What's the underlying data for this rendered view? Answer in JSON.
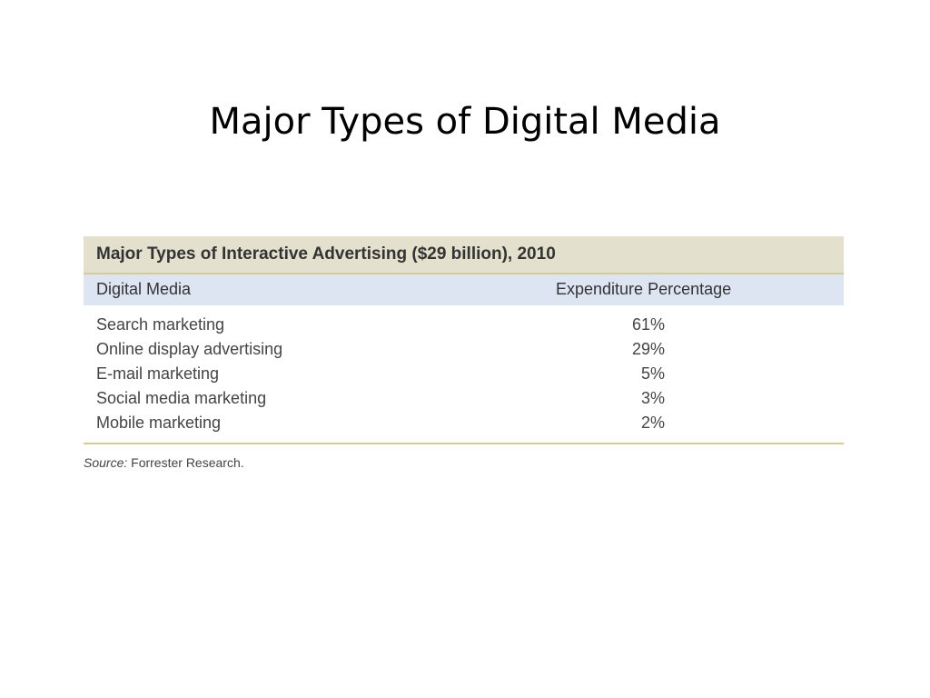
{
  "slide": {
    "title": "Major Types of Digital Media"
  },
  "table": {
    "title": "Major Types of Interactive Advertising ($29 billion), 2010",
    "columns": {
      "media": "Digital Media",
      "percentage": "Expenditure Percentage"
    },
    "rows": [
      {
        "media": "Search marketing",
        "percentage": "61%"
      },
      {
        "media": "Online display advertising",
        "percentage": "29%"
      },
      {
        "media": "E-mail marketing",
        "percentage": "5%"
      },
      {
        "media": "Social media marketing",
        "percentage": "3%"
      },
      {
        "media": "Mobile marketing",
        "percentage": "2%"
      }
    ],
    "source_label": "Source:",
    "source_text": " Forrester Research."
  }
}
